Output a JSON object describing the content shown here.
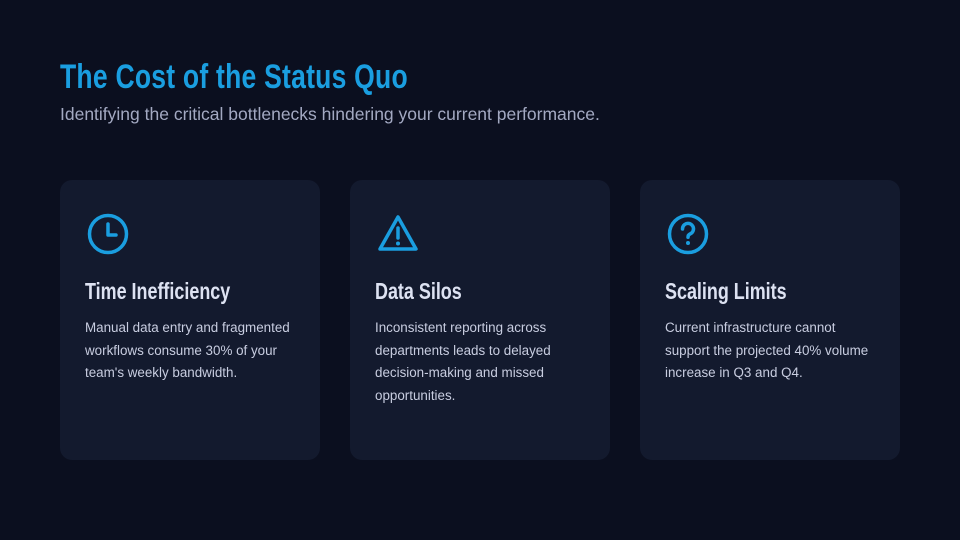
{
  "header": {
    "title": "The Cost of the Status Quo",
    "subtitle": "Identifying the critical bottlenecks hindering your current performance."
  },
  "colors": {
    "accent": "#1a9ee0",
    "background": "#0b0f1f",
    "card": "#131a2e"
  },
  "cards": [
    {
      "icon": "clock-icon",
      "title": "Time Inefficiency",
      "body": "Manual data entry and fragmented workflows consume 30% of your team's weekly bandwidth."
    },
    {
      "icon": "warning-triangle-icon",
      "title": "Data Silos",
      "body": "Inconsistent reporting across departments leads to delayed decision-making and missed opportunities."
    },
    {
      "icon": "question-circle-icon",
      "title": "Scaling Limits",
      "body": "Current infrastructure cannot support the projected 40% volume increase in Q3 and Q4."
    }
  ]
}
